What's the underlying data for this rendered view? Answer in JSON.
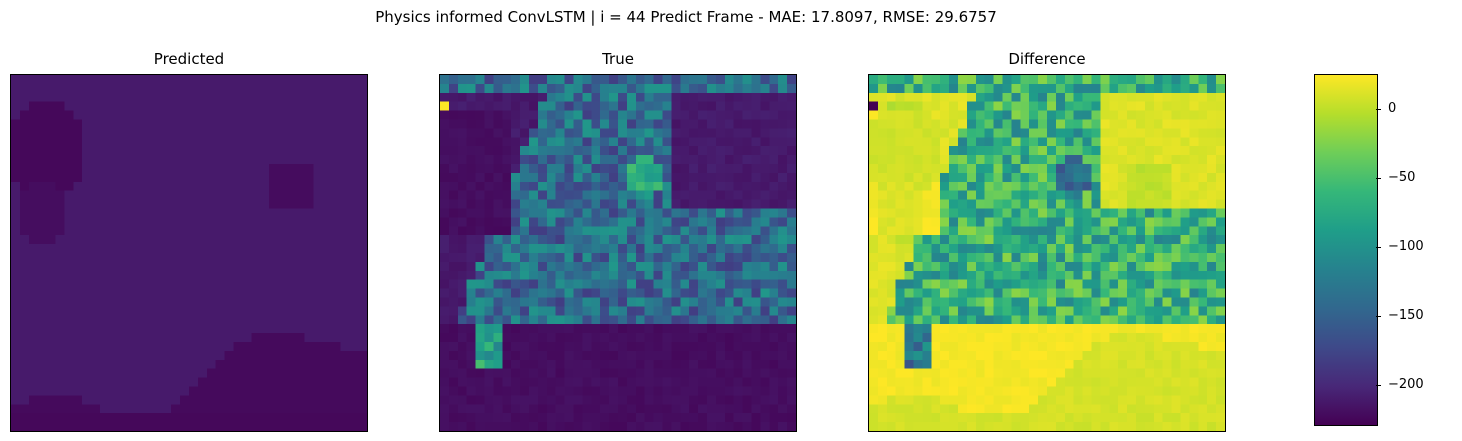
{
  "figure": {
    "suptitle": "Physics informed ConvLSTM | i = 44 Predict Frame - MAE: 17.8097, RMSE: 29.6757"
  },
  "chart_data": [
    {
      "type": "heatmap",
      "title": "Predicted",
      "grid_size": 40,
      "axes_visible": false,
      "colormap": "viridis",
      "value_range": [
        -225,
        25
      ]
    },
    {
      "type": "heatmap",
      "title": "True",
      "grid_size": 40,
      "axes_visible": false,
      "colormap": "viridis",
      "value_range": [
        -225,
        25
      ]
    },
    {
      "type": "heatmap",
      "title": "Difference",
      "grid_size": 40,
      "axes_visible": false,
      "colormap": "viridis",
      "value_range": [
        -225,
        25
      ]
    }
  ],
  "colorbar": {
    "range": [
      -228,
      25
    ],
    "ticks": [
      {
        "value": 0,
        "label": "0"
      },
      {
        "value": -50,
        "label": "−50"
      },
      {
        "value": -100,
        "label": "−100"
      },
      {
        "value": -150,
        "label": "−150"
      },
      {
        "value": -200,
        "label": "−200"
      }
    ],
    "colors": [
      "#440154",
      "#482878",
      "#3e4989",
      "#31688e",
      "#26828e",
      "#1f9e89",
      "#35b779",
      "#6ece58",
      "#b5de2b",
      "#fde725"
    ]
  }
}
